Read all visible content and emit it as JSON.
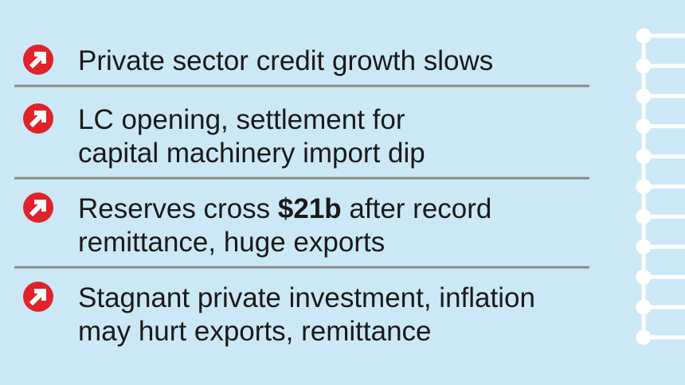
{
  "items": [
    {
      "lines": [
        [
          {
            "text": "Private sector credit growth slows"
          }
        ]
      ]
    },
    {
      "lines": [
        [
          {
            "text": "LC opening, settlement for"
          }
        ],
        [
          {
            "text": "capital machinery import dip"
          }
        ]
      ]
    },
    {
      "lines": [
        [
          {
            "text": "Reserves cross "
          },
          {
            "text": "$21b",
            "bold": true
          },
          {
            "text": " after record"
          }
        ],
        [
          {
            "text": "remittance, huge exports"
          }
        ]
      ]
    },
    {
      "lines": [
        [
          {
            "text": "Stagnant private investment, inflation"
          }
        ],
        [
          {
            "text": "may hurt exports, remittance"
          }
        ]
      ]
    }
  ]
}
